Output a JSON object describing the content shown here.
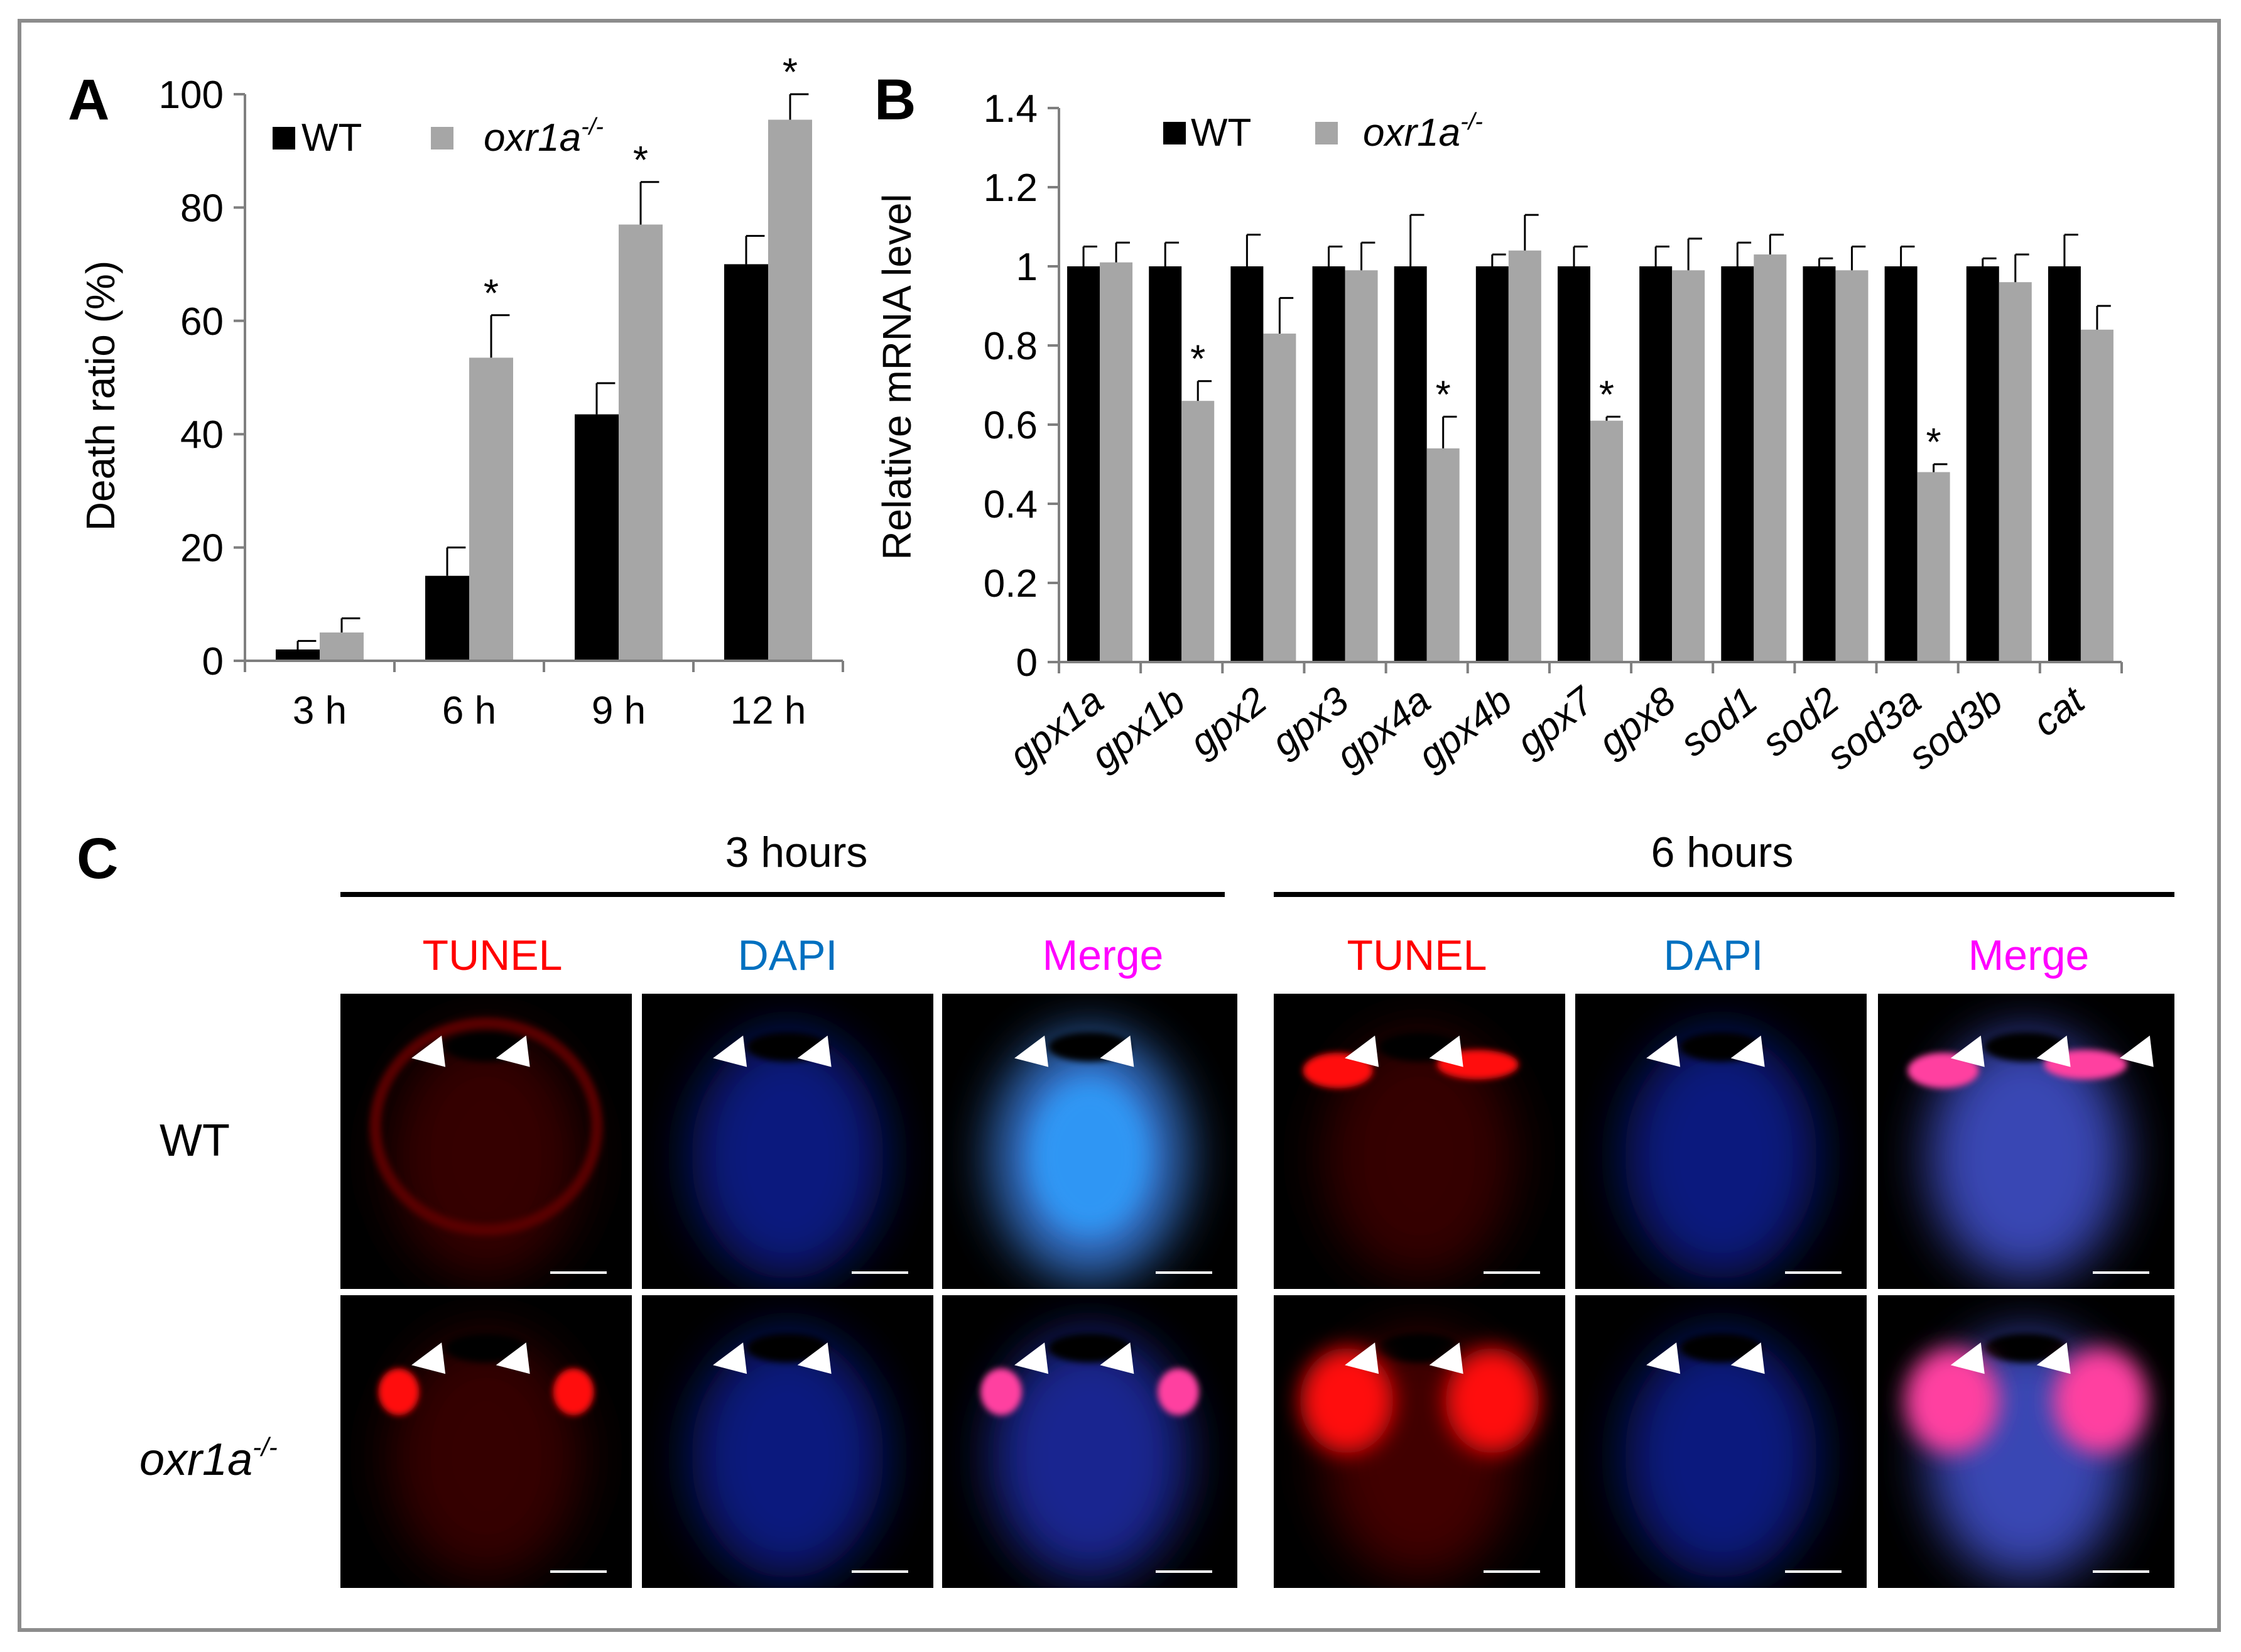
{
  "panels": {
    "a": "A",
    "b": "B",
    "c": "C"
  },
  "chart_data": [
    {
      "type": "bar",
      "panel": "A",
      "categories": [
        "3 h",
        "6 h",
        "9 h",
        "12 h"
      ],
      "series": [
        {
          "name": "WT",
          "values": [
            2,
            15,
            43.5,
            70
          ],
          "errors": [
            1.5,
            5,
            5.5,
            5
          ],
          "color": "#000000"
        },
        {
          "name": "oxr1a-/-",
          "name_base": "oxr1a",
          "name_sup": "-/-",
          "values": [
            5,
            53.5,
            77,
            95.5
          ],
          "errors": [
            2.5,
            7.5,
            7.5,
            4.5
          ],
          "color": "#a6a6a6"
        }
      ],
      "significance": [
        "",
        "*",
        "*",
        "*"
      ],
      "significance_series": "oxr1a-/-",
      "ylabel": "Death ratio (%)",
      "xlabel": "",
      "ylim": [
        0,
        100
      ],
      "yticks": [
        0,
        20,
        40,
        60,
        80,
        100
      ],
      "legend": "top-left"
    },
    {
      "type": "bar",
      "panel": "B",
      "categories": [
        "gpx1a",
        "gpx1b",
        "gpx2",
        "gpx3",
        "gpx4a",
        "gpx4b",
        "gpx7",
        "gpx8",
        "sod1",
        "sod2",
        "sod3a",
        "sod3b",
        "cat"
      ],
      "series": [
        {
          "name": "WT",
          "values": [
            1,
            1,
            1,
            1,
            1,
            1,
            1,
            1,
            1,
            1,
            1,
            1,
            1
          ],
          "errors": [
            0.05,
            0.06,
            0.08,
            0.05,
            0.13,
            0.03,
            0.05,
            0.05,
            0.06,
            0.02,
            0.05,
            0.02,
            0.08
          ],
          "color": "#000000"
        },
        {
          "name": "oxr1a-/-",
          "name_base": "oxr1a",
          "name_sup": "-/-",
          "values": [
            1.01,
            0.66,
            0.83,
            0.99,
            0.54,
            1.04,
            0.61,
            0.99,
            1.03,
            0.99,
            0.48,
            0.96,
            0.84
          ],
          "errors": [
            0.05,
            0.05,
            0.09,
            0.07,
            0.08,
            0.09,
            0.01,
            0.08,
            0.05,
            0.06,
            0.02,
            0.07,
            0.06
          ],
          "color": "#a6a6a6"
        }
      ],
      "significance": [
        "",
        "*",
        "",
        "",
        "*",
        "",
        "*",
        "",
        "",
        "",
        "*",
        "",
        ""
      ],
      "significance_series": "oxr1a-/-",
      "ylabel": "Relative mRNA level",
      "xlabel": "",
      "ylim": [
        0,
        1.4
      ],
      "yticks": [
        "0",
        "0.2",
        "0.4",
        "0.6",
        "0.8",
        "1",
        "1.2",
        "1.4"
      ],
      "legend": "top-center"
    }
  ],
  "panel_c": {
    "time_points": [
      "3 hours",
      "6 hours"
    ],
    "channels": [
      {
        "label": "TUNEL",
        "color": "#ff0000"
      },
      {
        "label": "DAPI",
        "color": "#0070c0"
      },
      {
        "label": "Merge",
        "color": "#ff00ff"
      }
    ],
    "rows": [
      {
        "label": "WT",
        "base": "WT",
        "sup": ""
      },
      {
        "label": "oxr1a-/-",
        "base": "oxr1a",
        "sup": "-/-"
      }
    ]
  }
}
